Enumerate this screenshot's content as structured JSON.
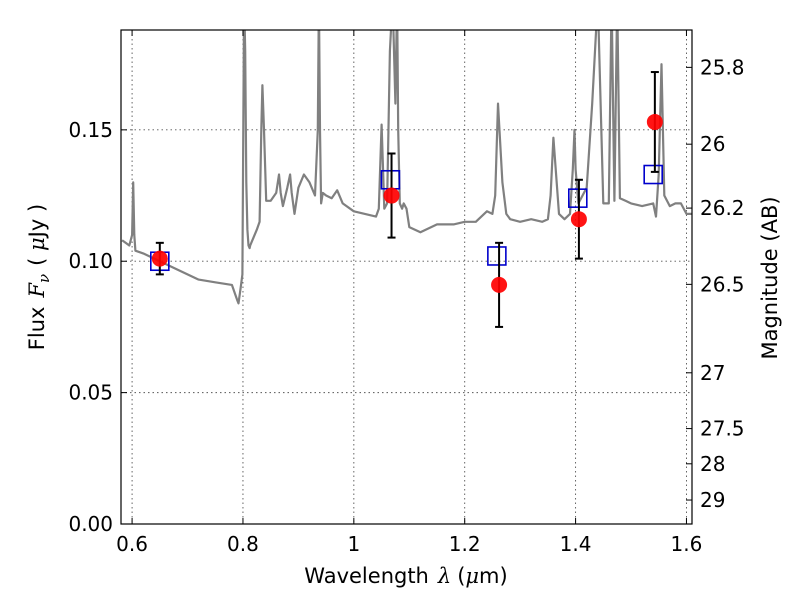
{
  "chart_data": {
    "type": "scatter",
    "xlabel_text": "Wavelength",
    "xlabel_symbol": "λ",
    "xlabel_unit_pre": "(",
    "xlabel_unit_mu": "μ",
    "xlabel_unit_post": "m)",
    "ylabel_text": "Flux",
    "ylabel_symbol": "F",
    "ylabel_subscript": "ν",
    "ylabel_unit_pre": "( ",
    "ylabel_unit_mu": "μ",
    "ylabel_unit_post": "Jy )",
    "y2label": "Magnitude (AB)",
    "xlim": [
      0.58,
      1.61
    ],
    "ylim": [
      0.0,
      0.188
    ],
    "grid": true,
    "x_ticks": [
      {
        "value": 0.6,
        "label": "0.6"
      },
      {
        "value": 0.8,
        "label": "0.8"
      },
      {
        "value": 1.0,
        "label": "1"
      },
      {
        "value": 1.2,
        "label": "1.2"
      },
      {
        "value": 1.4,
        "label": "1.4"
      },
      {
        "value": 1.6,
        "label": "1.6"
      }
    ],
    "y_ticks": [
      {
        "value": 0.0,
        "label": "0.00"
      },
      {
        "value": 0.05,
        "label": "0.05"
      },
      {
        "value": 0.1,
        "label": "0.10"
      },
      {
        "value": 0.15,
        "label": "0.15"
      }
    ],
    "y2_ticks": [
      {
        "value": 25.8,
        "label": "25.8"
      },
      {
        "value": 26.0,
        "label": "26"
      },
      {
        "value": 26.2,
        "label": "26.2"
      },
      {
        "value": 26.5,
        "label": "26.5"
      },
      {
        "value": 27.0,
        "label": "27"
      },
      {
        "value": 27.5,
        "label": "27.5"
      },
      {
        "value": 28.0,
        "label": "28"
      },
      {
        "value": 29.0,
        "label": "29"
      }
    ],
    "colors": {
      "template": "#808080",
      "observed": "#ff0000",
      "model": "#0000cc",
      "errorbar": "#000000"
    },
    "template_spectrum": {
      "x": [
        0.582,
        0.595,
        0.6,
        0.602,
        0.604,
        0.606,
        0.62,
        0.65,
        0.68,
        0.7,
        0.72,
        0.75,
        0.78,
        0.79,
        0.792,
        0.796,
        0.799,
        0.802,
        0.804,
        0.806,
        0.808,
        0.81,
        0.812,
        0.813,
        0.817,
        0.825,
        0.83,
        0.833,
        0.835,
        0.838,
        0.842,
        0.85,
        0.86,
        0.865,
        0.868,
        0.872,
        0.88,
        0.885,
        0.888,
        0.893,
        0.9,
        0.91,
        0.92,
        0.93,
        0.935,
        0.937,
        0.939,
        0.941,
        0.944,
        0.95,
        0.96,
        0.97,
        0.98,
        1.0,
        1.02,
        1.04,
        1.045,
        1.05,
        1.055,
        1.06,
        1.065,
        1.07,
        1.075,
        1.078,
        1.08,
        1.083,
        1.087,
        1.09,
        1.095,
        1.1,
        1.12,
        1.15,
        1.18,
        1.2,
        1.22,
        1.24,
        1.25,
        1.255,
        1.26,
        1.268,
        1.275,
        1.282,
        1.3,
        1.32,
        1.34,
        1.35,
        1.355,
        1.36,
        1.37,
        1.38,
        1.39,
        1.395,
        1.398,
        1.4,
        1.405,
        1.41,
        1.42,
        1.43,
        1.44,
        1.45,
        1.46,
        1.465,
        1.47,
        1.475,
        1.48,
        1.49,
        1.5,
        1.52,
        1.54,
        1.545,
        1.55,
        1.555,
        1.56,
        1.57,
        1.58,
        1.59,
        1.6,
        1.61
      ],
      "y": [
        0.108,
        0.106,
        0.11,
        0.13,
        0.11,
        0.104,
        0.103,
        0.1,
        0.097,
        0.095,
        0.093,
        0.092,
        0.091,
        0.085,
        0.084,
        0.09,
        0.095,
        0.2,
        0.18,
        0.13,
        0.112,
        0.106,
        0.105,
        0.106,
        0.108,
        0.112,
        0.115,
        0.15,
        0.167,
        0.15,
        0.123,
        0.123,
        0.126,
        0.133,
        0.126,
        0.121,
        0.128,
        0.133,
        0.126,
        0.118,
        0.128,
        0.133,
        0.13,
        0.125,
        0.15,
        0.2,
        0.15,
        0.122,
        0.126,
        0.125,
        0.124,
        0.127,
        0.122,
        0.119,
        0.118,
        0.117,
        0.12,
        0.152,
        0.12,
        0.122,
        0.18,
        0.2,
        0.16,
        0.2,
        0.15,
        0.122,
        0.12,
        0.122,
        0.12,
        0.113,
        0.111,
        0.114,
        0.114,
        0.115,
        0.115,
        0.119,
        0.118,
        0.125,
        0.16,
        0.13,
        0.118,
        0.116,
        0.115,
        0.116,
        0.115,
        0.116,
        0.125,
        0.147,
        0.118,
        0.116,
        0.118,
        0.135,
        0.15,
        0.135,
        0.122,
        0.124,
        0.128,
        0.16,
        0.2,
        0.122,
        0.122,
        0.2,
        0.123,
        0.2,
        0.124,
        0.123,
        0.122,
        0.121,
        0.122,
        0.117,
        0.133,
        0.175,
        0.125,
        0.121,
        0.122,
        0.122,
        0.118,
        0.118
      ]
    },
    "model_photometry": {
      "x": [
        0.65,
        1.066,
        1.258,
        1.404,
        1.54
      ],
      "y": [
        0.1,
        0.131,
        0.102,
        0.124,
        0.133
      ]
    },
    "observed_photometry": {
      "x": [
        0.65,
        1.068,
        1.262,
        1.406,
        1.543
      ],
      "y": [
        0.101,
        0.125,
        0.091,
        0.116,
        0.153
      ],
      "yerr_low": [
        0.006,
        0.016,
        0.016,
        0.015,
        0.019
      ],
      "yerr_high": [
        0.006,
        0.016,
        0.016,
        0.015,
        0.019
      ]
    }
  }
}
